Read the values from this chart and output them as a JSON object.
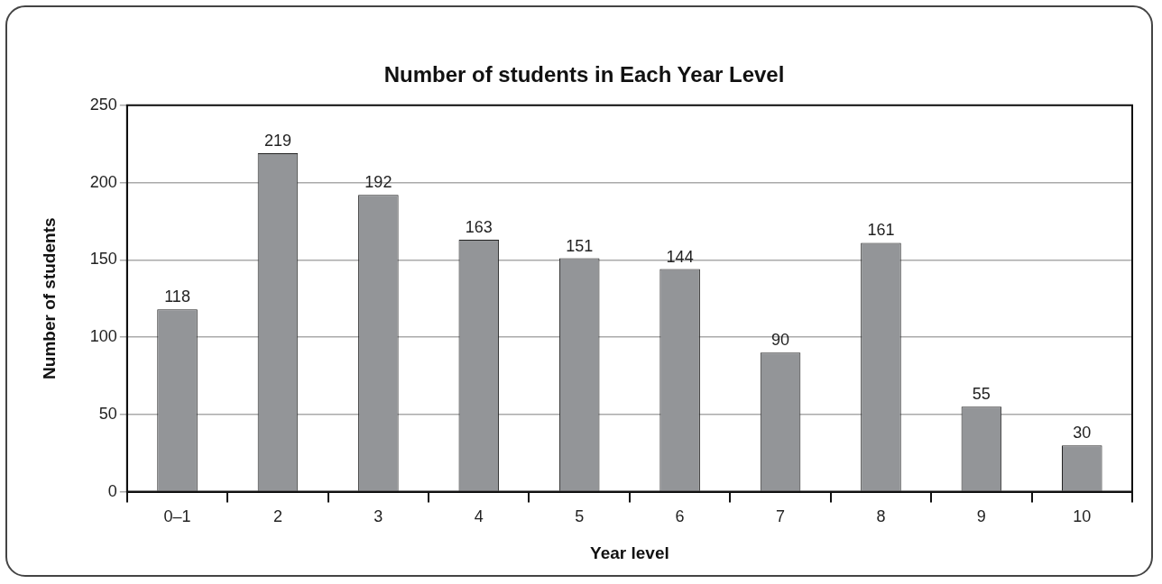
{
  "chart_data": {
    "type": "bar",
    "title": "Number of students in Each Year Level",
    "xlabel": "Year level",
    "ylabel": "Number of students",
    "categories": [
      "0–1",
      "2",
      "3",
      "4",
      "5",
      "6",
      "7",
      "8",
      "9",
      "10"
    ],
    "values": [
      118,
      219,
      192,
      163,
      151,
      144,
      90,
      161,
      55,
      30
    ],
    "color": "#939598",
    "ylim": [
      0,
      250
    ],
    "yticks": [
      0,
      50,
      100,
      150,
      200,
      250
    ],
    "grid": "y",
    "data_labels": true
  }
}
